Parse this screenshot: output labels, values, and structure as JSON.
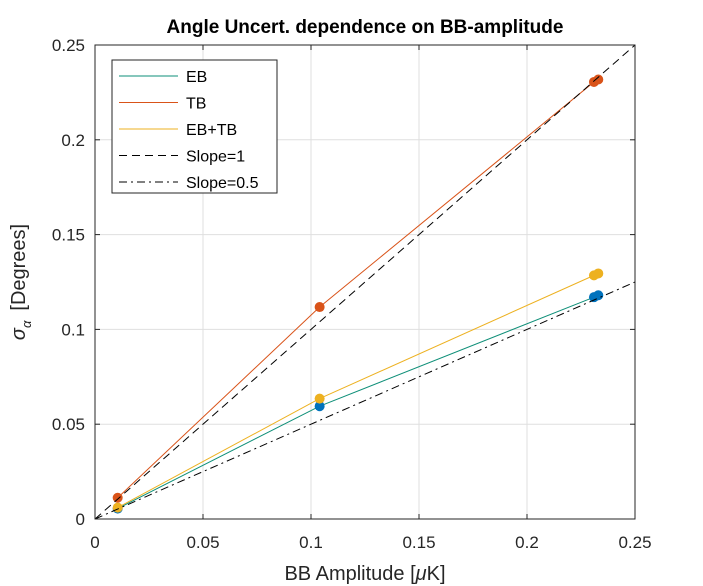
{
  "chart_data": {
    "type": "line",
    "title": "Angle Uncert. dependence on BB-amplitude",
    "xlabel_main": "BB Amplitude [",
    "xlabel_mu": "μ",
    "xlabel_end": "K]",
    "ylabel_sigma": "σ",
    "ylabel_alpha": "α",
    "ylabel_rest": "[Degrees]",
    "xlim": [
      0,
      0.25
    ],
    "ylim": [
      0,
      0.25
    ],
    "xticks": [
      0,
      0.05,
      0.1,
      0.15,
      0.2,
      0.25
    ],
    "xtick_labels": [
      "0",
      "0.05",
      "0.1",
      "0.15",
      "0.2",
      "0.25"
    ],
    "yticks": [
      0,
      0.05,
      0.1,
      0.15,
      0.2,
      0.25
    ],
    "ytick_labels": [
      "0",
      "0.05",
      "0.1",
      "0.15",
      "0.2",
      "0.25"
    ],
    "grid": true,
    "legend_position": "top-left",
    "series": [
      {
        "name": "EB",
        "color": "#0072BD",
        "line_color": "#0E8F78",
        "style": "solid",
        "markers": true,
        "x": [
          0.0105,
          0.104,
          0.231,
          0.233
        ],
        "y": [
          0.0055,
          0.0595,
          0.117,
          0.118
        ]
      },
      {
        "name": "TB",
        "color": "#D95319",
        "style": "solid",
        "markers": true,
        "x": [
          0.0105,
          0.104,
          0.231,
          0.233
        ],
        "y": [
          0.0112,
          0.1118,
          0.2305,
          0.2318
        ]
      },
      {
        "name": "EB+TB",
        "color": "#EDB120",
        "style": "solid",
        "markers": true,
        "x": [
          0.0105,
          0.104,
          0.231,
          0.233
        ],
        "y": [
          0.006,
          0.0635,
          0.1285,
          0.1295
        ]
      },
      {
        "name": "Slope=1",
        "color": "#000000",
        "style": "dashed",
        "markers": false,
        "x": [
          0,
          0.25
        ],
        "y": [
          0,
          0.25
        ]
      },
      {
        "name": "Slope=0.5",
        "color": "#000000",
        "style": "dashdot",
        "markers": false,
        "x": [
          0,
          0.25
        ],
        "y": [
          0,
          0.125
        ]
      }
    ]
  }
}
